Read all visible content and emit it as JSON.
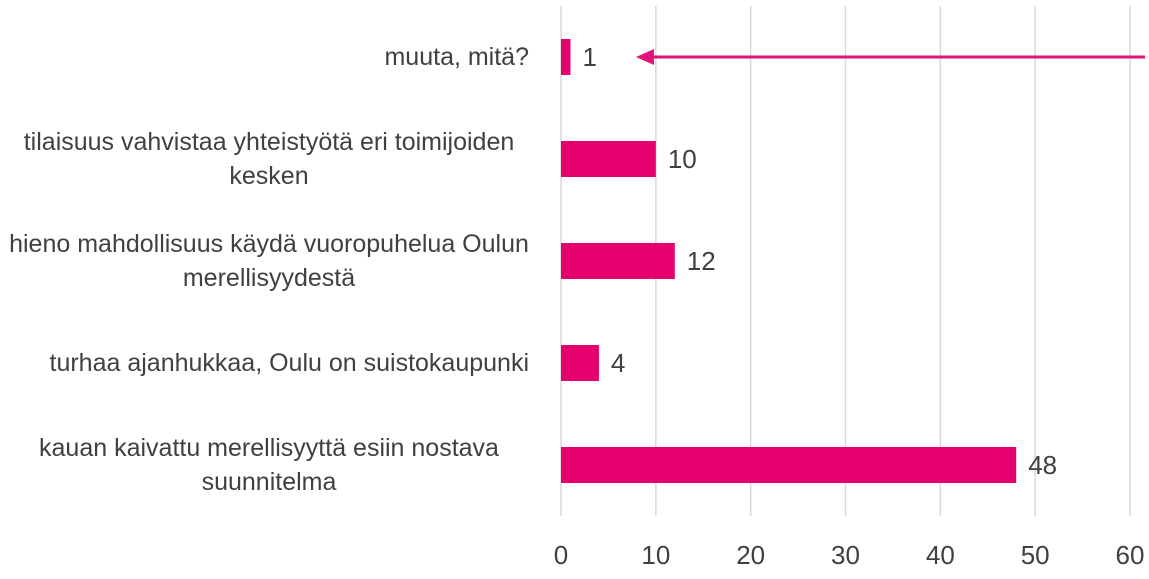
{
  "chart_data": {
    "type": "bar",
    "orientation": "horizontal",
    "categories": [
      "muuta, mitä?",
      "tilaisuus vahvistaa yhteistyötä eri toimijoiden kesken",
      "hieno mahdollisuus käydä vuoropuhelua Oulun merellisyydestä",
      "turhaa ajanhukkaa, Oulu on suistokaupunki",
      "kauan kaivattu merellisyyttä esiin nostava suunnitelma"
    ],
    "values": [
      1,
      10,
      12,
      4,
      48
    ],
    "color": "#e5006e",
    "xlim": [
      0,
      60
    ],
    "xticks": [
      0,
      10,
      20,
      30,
      40,
      50,
      60
    ],
    "grid": true
  }
}
